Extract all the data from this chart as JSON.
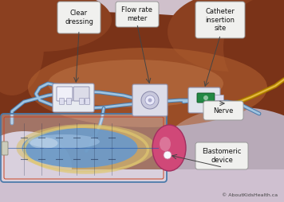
{
  "bg_color": "#cfc0cb",
  "copyright": "© AboutKidsHealth.ca",
  "labels": {
    "clear_dressing": "Clear\ndressing",
    "flow_rate_meter": "Flow rate\nmeter",
    "catheter_insertion": "Catheter\ninsertion\nsite",
    "nerve": "Nerve",
    "elastomeric": "Elastomeric\ndevice"
  },
  "body_brown": "#7a3318",
  "body_mid": "#8b4020",
  "body_light": "#b06030",
  "pillow_gray": "#b8aab8",
  "pillow_light": "#cfc0d0",
  "tube_color": "#a0c4e0",
  "tube_dark": "#4a7aaa",
  "nerve_yellow": "#c8960a",
  "nerve_light": "#e8c050",
  "balloon_blue": "#6899cc",
  "balloon_light": "#a8c8e8",
  "balloon_yellow": "#e0c870",
  "cap_pink": "#d04878",
  "cap_dark": "#a03060",
  "device_box": "#d8dae8",
  "device_white": "#eeeef8",
  "green_color": "#228844",
  "callout_bg": "#f0f0ee",
  "callout_border": "#999999",
  "label_fontsize": 6.0,
  "copyright_fontsize": 4.5
}
